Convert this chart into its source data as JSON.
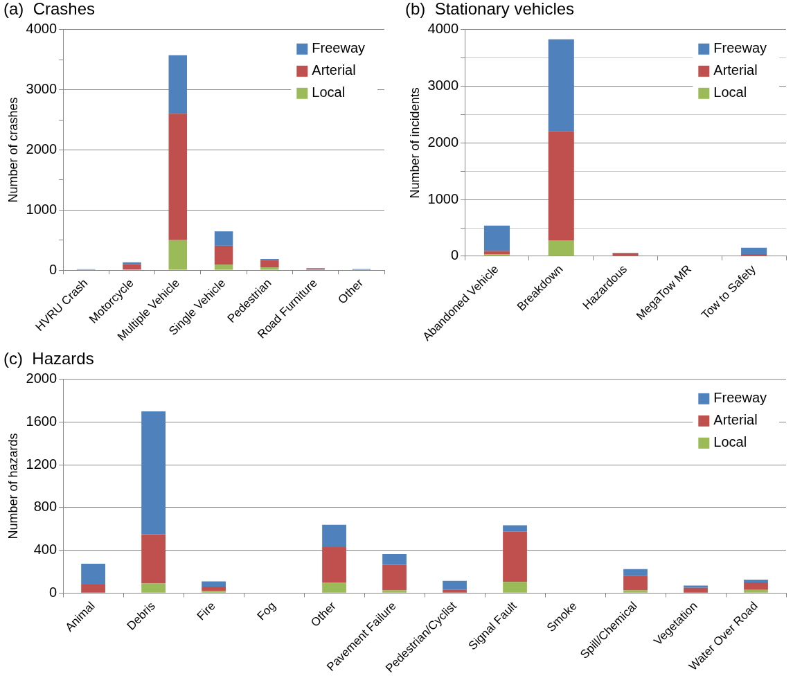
{
  "chart_data": [
    {
      "type": "bar",
      "title": "(a)  Crashes",
      "ylabel": "Number of crashes",
      "categories": [
        "HVRU Crash",
        "Motorcycle",
        "Multiple Vehicle",
        "Single Vehicle",
        "Pedestrian",
        "Road Furniture",
        "Other"
      ],
      "stacked": true,
      "ylim": [
        0,
        4000
      ],
      "yticks": [
        0,
        {
          "value": 500,
          "label": null
        },
        1000,
        {
          "value": 1500,
          "label": null
        },
        2000,
        {
          "value": 2500,
          "label": null
        },
        3000,
        {
          "value": 3500,
          "label": null
        },
        4000
      ],
      "grid": "y",
      "legend": "top right",
      "series": [
        {
          "name": "Local",
          "color": "#9bbb59",
          "values": [
            0,
            10,
            500,
            90,
            45,
            0,
            0
          ]
        },
        {
          "name": "Arterial",
          "color": "#c0504d",
          "values": [
            5,
            90,
            2100,
            315,
            125,
            18,
            8
          ]
        },
        {
          "name": "Freeway",
          "color": "#4f81bd",
          "values": [
            10,
            30,
            975,
            240,
            15,
            15,
            10
          ]
        }
      ]
    },
    {
      "type": "bar",
      "title": "(b)  Stationary vehicles",
      "ylabel": "Number of incidents",
      "categories": [
        "Abandoned Vehicle",
        "Breakdown",
        "Hazardous",
        "MegaTow MR",
        "Tow to Safety"
      ],
      "stacked": true,
      "ylim": [
        0,
        4000
      ],
      "yticks": [
        0,
        {
          "value": 500,
          "label": null
        },
        1000,
        {
          "value": 1500,
          "label": null
        },
        2000,
        {
          "value": 2500,
          "label": null
        },
        3000,
        {
          "value": 3500,
          "label": null
        },
        4000
      ],
      "grid": "y",
      "legend": "top right",
      "series": [
        {
          "name": "Local",
          "color": "#9bbb59",
          "values": [
            30,
            280,
            5,
            0,
            5
          ]
        },
        {
          "name": "Arterial",
          "color": "#c0504d",
          "values": [
            60,
            1930,
            40,
            0,
            30
          ]
        },
        {
          "name": "Freeway",
          "color": "#4f81bd",
          "values": [
            450,
            1620,
            15,
            0,
            115
          ]
        }
      ]
    },
    {
      "type": "bar",
      "title": "(c)  Hazards",
      "ylabel": "Number of hazards",
      "categories": [
        "Animal",
        "Debris",
        "Fire",
        "Fog",
        "Other",
        "Pavement Failure",
        "Pedestrian/Cyclist",
        "Signal Fault",
        "Smoke",
        "Spill/Chemical",
        "Vegetation",
        "Water Over Road"
      ],
      "stacked": true,
      "ylim": [
        0,
        2000
      ],
      "yticks": [
        0,
        400,
        800,
        1200,
        1600,
        2000
      ],
      "grid": "y",
      "legend": "top right",
      "series": [
        {
          "name": "Local",
          "color": "#9bbb59",
          "values": [
            0,
            90,
            20,
            0,
            100,
            25,
            0,
            105,
            0,
            25,
            0,
            30
          ]
        },
        {
          "name": "Arterial",
          "color": "#c0504d",
          "values": [
            80,
            460,
            40,
            0,
            330,
            240,
            30,
            470,
            0,
            135,
            50,
            70
          ]
        },
        {
          "name": "Freeway",
          "color": "#4f81bd",
          "values": [
            195,
            1150,
            50,
            0,
            210,
            100,
            85,
            60,
            0,
            65,
            20,
            25
          ]
        }
      ]
    }
  ]
}
